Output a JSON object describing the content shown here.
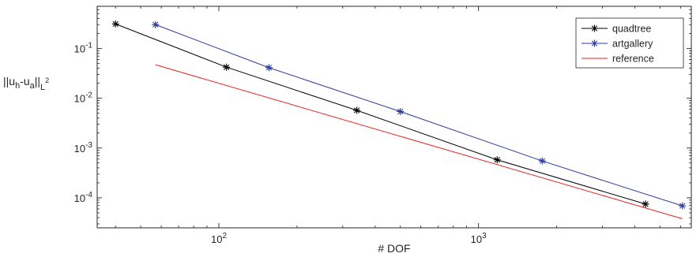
{
  "chart_data": {
    "type": "line",
    "title": "",
    "xlabel": "# DOF",
    "ylabel": {
      "prefix": "||u",
      "sub1": "h",
      "mid": "-u",
      "sub2": "a",
      "suffix": "||",
      "sub3": "L",
      "sup3": "2"
    },
    "xscale": "log",
    "yscale": "log",
    "xlim": [
      34,
      6600
    ],
    "ylim": [
      2.5e-05,
      0.7
    ],
    "x_ticks": [
      {
        "value": 100,
        "base": "10",
        "exp": "2"
      },
      {
        "value": 1000,
        "base": "10",
        "exp": "3"
      }
    ],
    "y_ticks": [
      {
        "value": 0.0001,
        "base": "10",
        "exp": "-4"
      },
      {
        "value": 0.001,
        "base": "10",
        "exp": "-3"
      },
      {
        "value": 0.01,
        "base": "10",
        "exp": "-2"
      },
      {
        "value": 0.1,
        "base": "10",
        "exp": "-1"
      }
    ],
    "grid": false,
    "legend_position": "top-right",
    "series": [
      {
        "name": "quadtree",
        "color": "#000000",
        "marker": "asterisk",
        "x": [
          40,
          107,
          340,
          1180,
          4400
        ],
        "y": [
          0.31,
          0.042,
          0.0057,
          0.00058,
          7.5e-05
        ]
      },
      {
        "name": "artgallery",
        "color": "#2b3a9b",
        "marker": "asterisk",
        "x": [
          57,
          156,
          500,
          1760,
          6100
        ],
        "y": [
          0.3,
          0.041,
          0.0054,
          0.00055,
          6.9e-05
        ]
      },
      {
        "name": "reference",
        "color": "#e8231f",
        "marker": "none",
        "x": [
          57,
          6100
        ],
        "y": [
          0.047,
          3.8e-05
        ]
      }
    ]
  }
}
